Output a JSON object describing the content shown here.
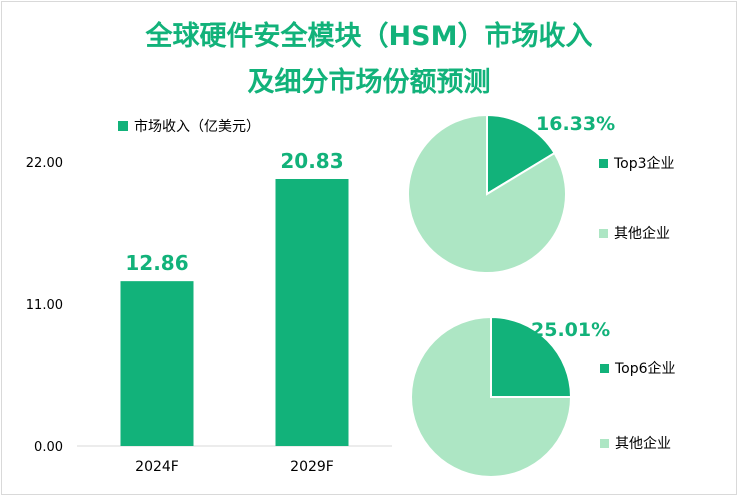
{
  "title": {
    "line1": "全球硬件安全模块（HSM）市场收入",
    "line2": "及细分市场份额预测"
  },
  "colors": {
    "accent": "#12b27a",
    "pie_light": "#ade6c4",
    "axis": "#d9d9d9",
    "text": "#000000"
  },
  "chart_data": [
    {
      "type": "bar",
      "legend": "市场收入（亿美元）",
      "categories": [
        "2024F",
        "2029F"
      ],
      "values": [
        12.86,
        20.83
      ],
      "data_labels": [
        "12.86",
        "20.83"
      ],
      "ylim": [
        0,
        22
      ],
      "yticks": [
        "0.00",
        "11.00",
        "22.00"
      ],
      "ytick_values": [
        0,
        11,
        22
      ]
    },
    {
      "type": "pie",
      "slices": [
        {
          "name": "Top3企业",
          "value": 16.33
        },
        {
          "name": "其他企业",
          "value": 83.67
        }
      ],
      "data_label": "16.33%"
    },
    {
      "type": "pie",
      "slices": [
        {
          "name": "Top6企业",
          "value": 25.01
        },
        {
          "name": "其他企业",
          "value": 74.99
        }
      ],
      "data_label": "25.01%"
    }
  ]
}
